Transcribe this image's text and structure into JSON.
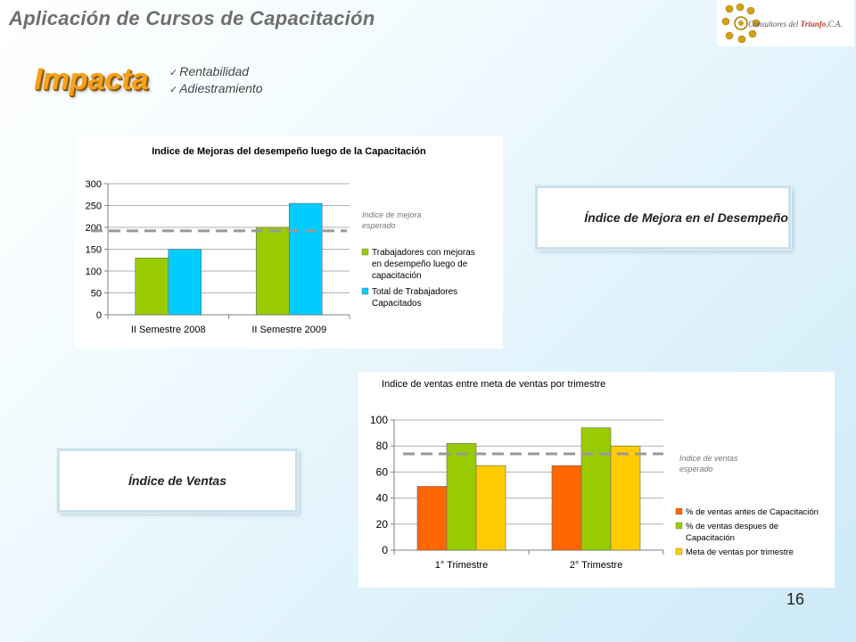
{
  "header": {
    "app_title": "Aplicación de Cursos de Capacitación",
    "logo_text_prefix": "Consultores del ",
    "logo_text_brand": "Triunfo",
    "logo_text_suffix": ",C.A."
  },
  "section": {
    "title": "Impacta",
    "bullets": [
      "Rentabilidad",
      "Adiestramiento"
    ]
  },
  "callouts": {
    "mejora": "Índice de Mejora en el Desempeño",
    "ventas": "Índice de Ventas"
  },
  "page_number": "16",
  "chart_data": [
    {
      "type": "bar",
      "title": "Indice de Mejoras del desempeño luego de la Capacitación",
      "categories": [
        "II Semestre 2008",
        "II Semestre 2009"
      ],
      "series": [
        {
          "name": "Trabajadores con mejoras en desempeño luego de capacitación",
          "values": [
            130,
            200
          ],
          "color": "#99cc00"
        },
        {
          "name": "Total de Trabajadores Capacitados",
          "values": [
            150,
            255
          ],
          "color": "#00ccff"
        }
      ],
      "reference_line": {
        "value": 192,
        "label": "Indice de mejora esperado",
        "color": "#999999"
      },
      "ylim": [
        0,
        300
      ],
      "yticks": [
        0,
        50,
        100,
        150,
        200,
        250,
        300
      ],
      "grid": true,
      "legend_position": "right"
    },
    {
      "type": "bar",
      "title": "Indice de ventas entre meta de ventas por trimestre",
      "categories": [
        "1° Trimestre",
        "2° Trimestre"
      ],
      "series": [
        {
          "name": "% de ventas antes de Capacitación",
          "values": [
            49,
            65
          ],
          "color": "#ff6600"
        },
        {
          "name": "% de ventas despues de Capacitación",
          "values": [
            82,
            94
          ],
          "color": "#99cc00"
        },
        {
          "name": "Meta de ventas por trimestre",
          "values": [
            65,
            80
          ],
          "color": "#ffcc00"
        }
      ],
      "reference_line": {
        "value": 74,
        "label": "Indice de ventas esperado",
        "color": "#999999"
      },
      "ylim": [
        0,
        100
      ],
      "yticks": [
        0,
        20,
        40,
        60,
        80,
        100
      ],
      "grid": true,
      "legend_position": "right"
    }
  ]
}
